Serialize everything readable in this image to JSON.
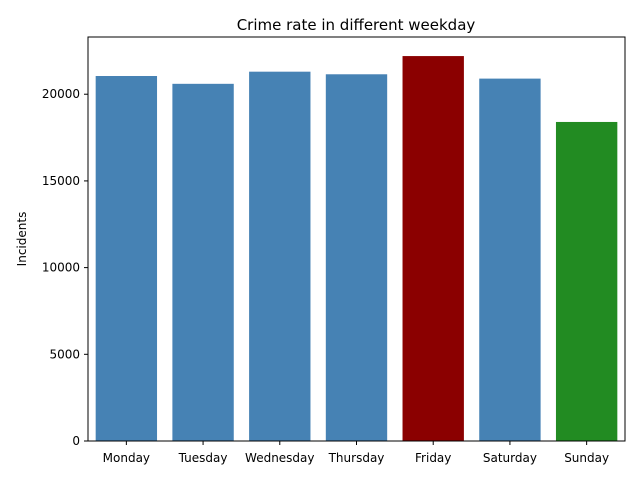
{
  "chart_data": {
    "type": "bar",
    "title": "Crime rate in different weekday",
    "xlabel": "",
    "ylabel": "Incidents",
    "categories": [
      "Monday",
      "Tuesday",
      "Wednesday",
      "Thursday",
      "Friday",
      "Saturday",
      "Sunday"
    ],
    "values": [
      21050,
      20600,
      21300,
      21150,
      22200,
      20900,
      18400
    ],
    "colors": [
      "#4682b4",
      "#4682b4",
      "#4682b4",
      "#4682b4",
      "#8b0000",
      "#4682b4",
      "#228b22"
    ],
    "ylim": [
      0,
      23300
    ],
    "yticks": [
      0,
      5000,
      10000,
      15000,
      20000
    ],
    "ytick_labels": [
      "0",
      "5000",
      "10000",
      "15000",
      "20000"
    ],
    "grid": false,
    "legend": "none"
  }
}
